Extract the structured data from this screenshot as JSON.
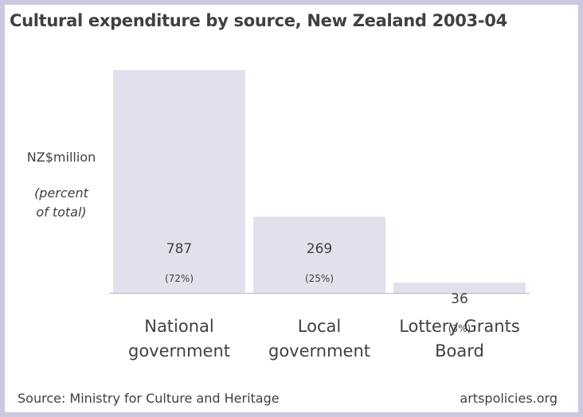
{
  "title": "Cultural expenditure by source, New Zealand 2003-04",
  "ylabel": {
    "unit": "NZ$million",
    "sub_line1": "(percent",
    "sub_line2": "of total)"
  },
  "chart_data": {
    "type": "bar",
    "categories": [
      [
        "National",
        "government"
      ],
      [
        "Local",
        "government"
      ],
      [
        "Lottery Grants",
        "Board"
      ]
    ],
    "values": [
      787,
      269,
      36
    ],
    "value_labels": [
      "787",
      "269",
      "36"
    ],
    "percent_labels": [
      "(72%)",
      "(25%)",
      "(3%)"
    ],
    "ylim": [
      0,
      787
    ],
    "grid": false,
    "bar_color": "#e3dfed",
    "axis_color": "#b8b8b8",
    "text_color": "#404040"
  },
  "footer": {
    "source": "Source: Ministry for Culture and Heritage",
    "brand": "artspolicies.org"
  }
}
